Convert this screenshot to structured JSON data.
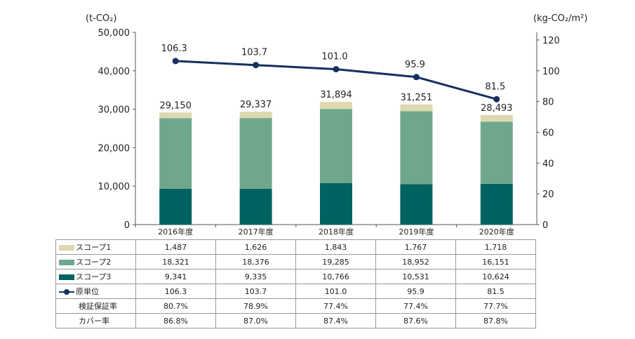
{
  "chart_data": {
    "type": "bar",
    "categories": [
      "2016年度",
      "2017年度",
      "2018年度",
      "2019年度",
      "2020年度"
    ],
    "series": [
      {
        "name": "スコープ1",
        "values": [
          1487,
          1626,
          1843,
          1767,
          1718
        ],
        "color": "#ddd8b0"
      },
      {
        "name": "スコープ2",
        "values": [
          18321,
          18376,
          19285,
          18952,
          16151
        ],
        "color": "#6fa78d"
      },
      {
        "name": "スコープ3",
        "values": [
          9341,
          9335,
          10766,
          10531,
          10624
        ],
        "color": "#006361"
      },
      {
        "name": "原単位",
        "type": "line",
        "axis": "right",
        "values": [
          106.3,
          103.7,
          101.0,
          95.9,
          81.5
        ],
        "color": "#15305e"
      }
    ],
    "totals": [
      "29,150",
      "29,337",
      "31,894",
      "31,251",
      "28,493"
    ],
    "line_labels": [
      "106.3",
      "103.7",
      "101.0",
      "95.9",
      "81.5"
    ],
    "y_left": {
      "unit": "(t-CO₂)",
      "ylim": [
        0,
        50000
      ],
      "ticks": [
        "0",
        "10,000",
        "20,000",
        "30,000",
        "40,000",
        "50,000"
      ]
    },
    "y_right": {
      "unit": "(kg-CO₂/m²)",
      "ylim": [
        0,
        125
      ],
      "ticks": [
        "0",
        "20",
        "40",
        "60",
        "80",
        "100",
        "120"
      ]
    },
    "grid": false,
    "legend": "data-table"
  },
  "table": {
    "rows": [
      {
        "label": "スコープ1",
        "marker": "box",
        "color": "#ddd8b0",
        "cells": [
          "1,487",
          "1,626",
          "1,843",
          "1,767",
          "1,718"
        ]
      },
      {
        "label": "スコープ2",
        "marker": "box",
        "color": "#6fa78d",
        "cells": [
          "18,321",
          "18,376",
          "19,285",
          "18,952",
          "16,151"
        ]
      },
      {
        "label": "スコープ3",
        "marker": "box",
        "color": "#006361",
        "cells": [
          "9,341",
          "9,335",
          "10,766",
          "10,531",
          "10,624"
        ]
      },
      {
        "label": "原単位",
        "marker": "line",
        "color": "#15305e",
        "cells": [
          "106.3",
          "103.7",
          "101.0",
          "95.9",
          "81.5"
        ]
      },
      {
        "label": "検証保証率",
        "marker": "none",
        "cells": [
          "80.7%",
          "78.9%",
          "77.4%",
          "77.4%",
          "77.7%"
        ]
      },
      {
        "label": "カバー率",
        "marker": "none",
        "cells": [
          "86.8%",
          "87.0%",
          "87.4%",
          "87.6%",
          "87.8%"
        ]
      }
    ]
  }
}
